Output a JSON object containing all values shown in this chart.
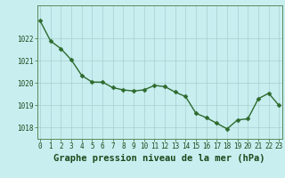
{
  "x": [
    0,
    1,
    2,
    3,
    4,
    5,
    6,
    7,
    8,
    9,
    10,
    11,
    12,
    13,
    14,
    15,
    16,
    17,
    18,
    19,
    20,
    21,
    22,
    23
  ],
  "y": [
    1022.8,
    1021.9,
    1021.55,
    1021.05,
    1020.35,
    1020.05,
    1020.05,
    1019.8,
    1019.7,
    1019.65,
    1019.7,
    1019.9,
    1019.85,
    1019.6,
    1019.4,
    1018.65,
    1018.45,
    1018.2,
    1017.95,
    1018.35,
    1018.4,
    1019.3,
    1019.55,
    1019.0
  ],
  "line_color": "#2d6a2d",
  "marker_color": "#2d6a2d",
  "bg_color": "#c8eef0",
  "grid_color": "#a8d0d0",
  "xlabel": "Graphe pression niveau de la mer (hPa)",
  "xlabel_color": "#1a4a1a",
  "ylim_min": 1017.5,
  "ylim_max": 1023.5,
  "xlim_min": -0.3,
  "xlim_max": 23.3,
  "yticks": [
    1018,
    1019,
    1020,
    1021,
    1022
  ],
  "xticks": [
    0,
    1,
    2,
    3,
    4,
    5,
    6,
    7,
    8,
    9,
    10,
    11,
    12,
    13,
    14,
    15,
    16,
    17,
    18,
    19,
    20,
    21,
    22,
    23
  ],
  "tick_fontsize": 5.5,
  "xlabel_fontsize": 7.5,
  "line_width": 1.0,
  "marker_size": 2.5
}
